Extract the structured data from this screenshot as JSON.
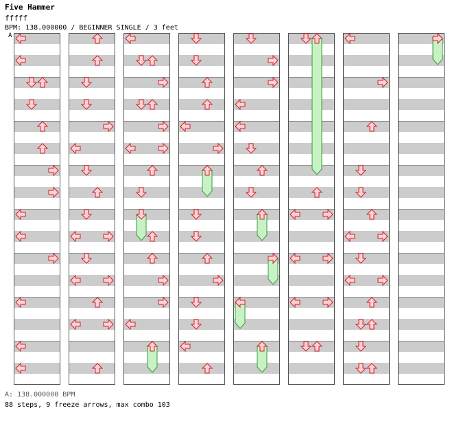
{
  "song": {
    "title": "Five Hammer",
    "artist": "fffff"
  },
  "chart_info": "BPM: 138.000000 / BEGINNER SINGLE / 3 feet",
  "bpm_marker": "A",
  "bpm_legend": "A: 138.000000 BPM",
  "stats": "88 steps, 9 freeze arrows, max combo 103",
  "colors": {
    "arrow_fill": "#ffd2d2",
    "arrow_stroke": "#d02030",
    "freeze_fill": "#c6f2c6",
    "freeze_stroke": "#3a9a3a",
    "stripe": "#cccccc"
  },
  "chart_data": {
    "type": "step-chart",
    "columns": 8,
    "measures_per_column": 8,
    "rows_per_measure": 2,
    "lanes": [
      "left",
      "down",
      "up",
      "right"
    ],
    "notes": [
      [
        [
          0,
          0,
          [
            "left"
          ]
        ],
        [
          0,
          1,
          [
            "left"
          ]
        ],
        [
          1,
          0,
          [
            "down",
            "up"
          ]
        ],
        [
          1,
          1,
          [
            "down"
          ]
        ],
        [
          2,
          0,
          [
            "up"
          ]
        ],
        [
          2,
          1,
          [
            "up"
          ]
        ],
        [
          3,
          0,
          [
            "right"
          ]
        ],
        [
          3,
          1,
          [
            "right"
          ]
        ],
        [
          4,
          0,
          [
            "left"
          ]
        ],
        [
          4,
          1,
          [
            "left"
          ]
        ],
        [
          5,
          0,
          [
            "right"
          ]
        ],
        [
          6,
          0,
          [
            "left"
          ]
        ],
        [
          7,
          0,
          [
            "left"
          ]
        ],
        [
          7,
          1,
          [
            "left"
          ]
        ]
      ],
      [
        [
          0,
          0,
          [
            "up"
          ]
        ],
        [
          0,
          1,
          [
            "up"
          ]
        ],
        [
          1,
          0,
          [
            "down"
          ]
        ],
        [
          1,
          1,
          [
            "down"
          ]
        ],
        [
          2,
          0,
          [
            "right"
          ]
        ],
        [
          2,
          1,
          [
            "left"
          ]
        ],
        [
          3,
          0,
          [
            "down"
          ]
        ],
        [
          3,
          1,
          [
            "up"
          ]
        ],
        [
          4,
          0,
          [
            "down"
          ]
        ],
        [
          4,
          1,
          [
            "left",
            "right"
          ]
        ],
        [
          5,
          0,
          [
            "down"
          ]
        ],
        [
          5,
          1,
          [
            "left",
            "right"
          ]
        ],
        [
          6,
          0,
          [
            "up"
          ]
        ],
        [
          6,
          1,
          [
            "left",
            "right"
          ]
        ],
        [
          7,
          1,
          [
            "up"
          ]
        ]
      ],
      [
        [
          0,
          0,
          [
            "left"
          ]
        ],
        [
          0,
          1,
          [
            "down",
            "up"
          ]
        ],
        [
          1,
          0,
          [
            "right"
          ]
        ],
        [
          1,
          1,
          [
            "down",
            "up"
          ]
        ],
        [
          2,
          0,
          [
            "right"
          ]
        ],
        [
          2,
          1,
          [
            "left",
            "right"
          ]
        ],
        [
          3,
          0,
          [
            "up"
          ]
        ],
        [
          3,
          1,
          [
            "down"
          ]
        ],
        [
          4,
          1,
          [
            "up"
          ]
        ],
        [
          5,
          0,
          [
            "up"
          ]
        ],
        [
          5,
          1,
          [
            "right"
          ]
        ],
        [
          6,
          0,
          [
            "right"
          ]
        ],
        [
          6,
          1,
          [
            "left"
          ]
        ],
        [
          7,
          0,
          [
            "up"
          ]
        ]
      ],
      [
        [
          0,
          0,
          [
            "down"
          ]
        ],
        [
          0,
          1,
          [
            "down"
          ]
        ],
        [
          1,
          0,
          [
            "up"
          ]
        ],
        [
          1,
          1,
          [
            "up"
          ]
        ],
        [
          2,
          0,
          [
            "left"
          ]
        ],
        [
          2,
          1,
          [
            "right"
          ]
        ],
        [
          3,
          0,
          [
            "up"
          ]
        ],
        [
          4,
          0,
          [
            "down"
          ]
        ],
        [
          4,
          1,
          [
            "down"
          ]
        ],
        [
          5,
          0,
          [
            "up"
          ]
        ],
        [
          5,
          1,
          [
            "right"
          ]
        ],
        [
          6,
          0,
          [
            "down"
          ]
        ],
        [
          6,
          1,
          [
            "down"
          ]
        ],
        [
          7,
          0,
          [
            "left"
          ]
        ],
        [
          7,
          1,
          [
            "up"
          ]
        ]
      ],
      [
        [
          0,
          0,
          [
            "down"
          ]
        ],
        [
          0,
          1,
          [
            "right"
          ]
        ],
        [
          1,
          0,
          [
            "right"
          ]
        ],
        [
          1,
          1,
          [
            "left"
          ]
        ],
        [
          2,
          0,
          [
            "left"
          ]
        ],
        [
          2,
          1,
          [
            "down"
          ]
        ],
        [
          3,
          0,
          [
            "up"
          ]
        ],
        [
          3,
          1,
          [
            "down"
          ]
        ],
        [
          4,
          0,
          [
            "up"
          ]
        ],
        [
          5,
          0,
          [
            "right"
          ]
        ],
        [
          6,
          0,
          [
            "left"
          ]
        ],
        [
          7,
          0,
          [
            "up"
          ]
        ]
      ],
      [
        [
          0,
          0,
          [
            "down"
          ]
        ],
        [
          3,
          1,
          [
            "up"
          ]
        ],
        [
          4,
          0,
          [
            "left",
            "right"
          ]
        ],
        [
          5,
          0,
          [
            "left",
            "right"
          ]
        ],
        [
          6,
          0,
          [
            "left",
            "right"
          ]
        ],
        [
          7,
          0,
          [
            "down",
            "up"
          ]
        ]
      ],
      [
        [
          0,
          0,
          [
            "left"
          ]
        ],
        [
          1,
          0,
          [
            "right"
          ]
        ],
        [
          2,
          0,
          [
            "up"
          ]
        ],
        [
          3,
          0,
          [
            "down"
          ]
        ],
        [
          3,
          1,
          [
            "down"
          ]
        ],
        [
          4,
          0,
          [
            "up"
          ]
        ],
        [
          4,
          1,
          [
            "left",
            "right"
          ]
        ],
        [
          5,
          0,
          [
            "down"
          ]
        ],
        [
          5,
          1,
          [
            "left",
            "right"
          ]
        ],
        [
          6,
          0,
          [
            "up"
          ]
        ],
        [
          6,
          1,
          [
            "down",
            "up"
          ]
        ],
        [
          7,
          0,
          [
            "down"
          ]
        ],
        [
          7,
          1,
          [
            "down",
            "up"
          ]
        ]
      ],
      [
        [
          0,
          0,
          [
            "right"
          ]
        ]
      ]
    ],
    "freezes": [
      [],
      [],
      [
        [
          4,
          0,
          4,
          1,
          "down"
        ],
        [
          7,
          0,
          7,
          1,
          "up"
        ]
      ],
      [
        [
          3,
          0,
          3,
          1,
          "up"
        ]
      ],
      [
        [
          4,
          0,
          4,
          1,
          "up"
        ],
        [
          5,
          0,
          5,
          1,
          "right"
        ],
        [
          6,
          0,
          6,
          1,
          "left"
        ],
        [
          7,
          0,
          7,
          1,
          "up"
        ]
      ],
      [
        [
          0,
          0,
          2,
          2,
          "up"
        ]
      ],
      [],
      [
        [
          0,
          0,
          0,
          1,
          "right"
        ]
      ]
    ]
  }
}
